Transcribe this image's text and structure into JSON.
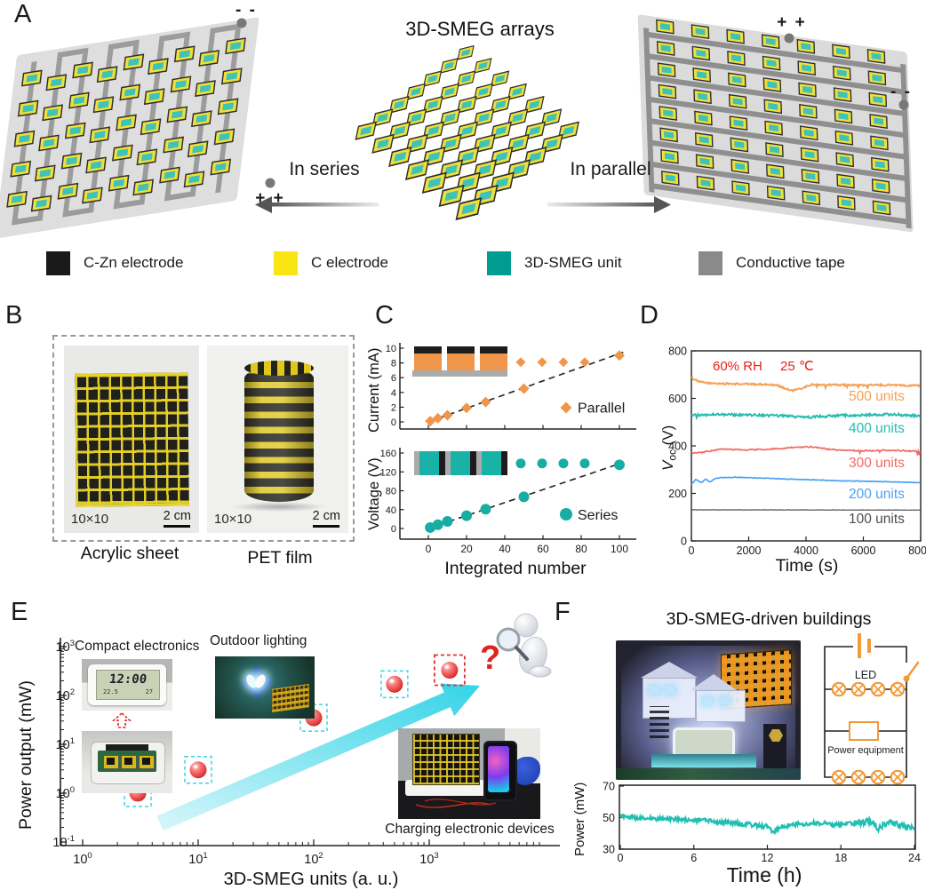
{
  "panels": {
    "a": "A",
    "b": "B",
    "c": "C",
    "d": "D",
    "e": "E",
    "f": "F"
  },
  "panelA": {
    "title": "3D-SMEG arrays",
    "in_series": "In series",
    "in_parallel": "In parallel",
    "left_array": {
      "top_terminal": "- -",
      "bottom_terminal": "+ +"
    },
    "right_array": {
      "top_terminal": "+ +",
      "side_terminal": "- -"
    },
    "legend": [
      {
        "name": "c-zn-electrode",
        "label": "C-Zn electrode",
        "color": "#1A1A1A"
      },
      {
        "name": "c-electrode",
        "label": "C electrode",
        "color": "#F9E514"
      },
      {
        "name": "3d-smeg-unit",
        "label": "3D-SMEG unit",
        "color": "#009C92"
      },
      {
        "name": "conductive-tape",
        "label": "Conductive tape",
        "color": "#8A8A8A"
      }
    ]
  },
  "panelB": {
    "left_photo": {
      "grid_label": "10×10",
      "scale_label": "2 cm",
      "caption": "Acrylic sheet"
    },
    "right_photo": {
      "grid_label": "10×10",
      "scale_label": "2 cm",
      "caption": "PET film"
    }
  },
  "panelE_insets": {
    "compact_label": "Compact electronics",
    "clock_time": "12:00",
    "clock_left": "22.5",
    "clock_right": "27",
    "outdoor_label": "Outdoor lighting",
    "charging_label": "Charging electronic devices",
    "question_mark": "?"
  },
  "panelF": {
    "title": "3D-SMEG-driven buildings",
    "circuit": {
      "led_label": "LED",
      "equipment_label": "Power equipment"
    }
  },
  "chart_data": [
    {
      "id": "current-vs-number",
      "type": "scatter",
      "ylabel": "Current (mA)",
      "xlabel": "",
      "xlim": [
        0,
        100
      ],
      "ylim": [
        0,
        10
      ],
      "xticks": [
        0,
        20,
        40,
        60,
        80,
        100
      ],
      "yticks": [
        0,
        2,
        4,
        6,
        8,
        10
      ],
      "legend": "Parallel",
      "marker": "diamond",
      "color": "#F0964B",
      "x": [
        1,
        5,
        10,
        20,
        30,
        50,
        100
      ],
      "y": [
        0.1,
        0.5,
        0.9,
        1.9,
        2.7,
        4.5,
        9.0
      ],
      "trend": [
        [
          0,
          0
        ],
        [
          102,
          9.45
        ]
      ]
    },
    {
      "id": "voltage-vs-number",
      "type": "scatter",
      "ylabel": "Voltage (V)",
      "xlabel": "Integrated number",
      "xlim": [
        0,
        100
      ],
      "ylim": [
        0,
        160
      ],
      "xticks": [
        0,
        20,
        40,
        60,
        80,
        100
      ],
      "yticks": [
        0,
        40,
        80,
        120,
        160
      ],
      "legend": "Series",
      "marker": "circle",
      "color": "#17ADA3",
      "x": [
        1,
        5,
        10,
        20,
        30,
        50,
        100
      ],
      "y": [
        2,
        8,
        15,
        27,
        41,
        67,
        135
      ],
      "trend": [
        [
          0,
          0
        ],
        [
          102,
          140
        ]
      ]
    },
    {
      "id": "voc-stability",
      "type": "line",
      "xlabel": "Time (s)",
      "ylabel_v": "V",
      "ylabel_sub": "oc",
      "ylabel_unit": "(V)",
      "xlim": [
        0,
        8000
      ],
      "ylim": [
        0,
        800
      ],
      "xticks": [
        0,
        2000,
        4000,
        6000,
        8000
      ],
      "yticks": [
        0,
        200,
        400,
        600,
        800
      ],
      "annotation_rh": "60% RH",
      "annotation_temp": "25 ℃",
      "annotation_color": "#E8221C",
      "series": [
        {
          "label": "500 units",
          "color": "#F5A057",
          "amp": 3.5,
          "spike": 0.025,
          "spike_mag": 14,
          "anchors_t": [
            0,
            250,
            700,
            1500,
            2500,
            3000,
            3200,
            3500,
            3800,
            4200,
            5000,
            6000,
            7000,
            8000
          ],
          "anchors_v": [
            688,
            670,
            663,
            661,
            659,
            656,
            645,
            632,
            640,
            658,
            657,
            655,
            657,
            653
          ]
        },
        {
          "label": "400 units",
          "color": "#27BCB1",
          "amp": 5,
          "spike": 0.006,
          "spike_mag": 12,
          "anchors_t": [
            0,
            1000,
            2000,
            3000,
            4000,
            5000,
            6000,
            7000,
            8000
          ],
          "anchors_v": [
            528,
            532,
            530,
            527,
            521,
            527,
            530,
            532,
            526
          ]
        },
        {
          "label": "300 units",
          "color": "#F16A63",
          "amp": 2.5,
          "spike": 0.02,
          "spike_mag": 16,
          "anchors_t": [
            0,
            400,
            1000,
            2000,
            3000,
            3600,
            4200,
            4600,
            5200,
            6000,
            7000,
            8000
          ],
          "anchors_v": [
            368,
            373,
            386,
            383,
            388,
            394,
            396,
            389,
            381,
            379,
            382,
            377
          ]
        },
        {
          "label": "200 units",
          "color": "#4AA2F4",
          "amp": 1.2,
          "spike": 0,
          "spike_mag": 0,
          "anchors_t": [
            0,
            150,
            350,
            500,
            650,
            800,
            1000,
            1600,
            3000,
            5000,
            6500,
            8000
          ],
          "anchors_v": [
            237,
            259,
            245,
            261,
            247,
            262,
            266,
            268,
            262,
            254,
            250,
            245
          ]
        },
        {
          "label": "100 units",
          "color": "#4D4D4D",
          "amp": 0.7,
          "spike": 0,
          "spike_mag": 0,
          "anchors_t": [
            0,
            8000
          ],
          "anchors_v": [
            131,
            130
          ]
        }
      ]
    },
    {
      "id": "power-scaling",
      "type": "scatter",
      "xscale": "log",
      "yscale": "log",
      "xlabel": "3D-SMEG units (a. u.)",
      "ylabel": "Power output (mW)",
      "xticks_exp": [
        0,
        1,
        2,
        3
      ],
      "yticks_exp": [
        -1,
        0,
        1,
        2,
        3
      ],
      "points": [
        {
          "units": 3,
          "power": 1,
          "box": "cyan"
        },
        {
          "units": 10,
          "power": 3,
          "box": "cyan"
        },
        {
          "units": 100,
          "power": 35,
          "box": "cyan"
        },
        {
          "units": 500,
          "power": 170,
          "box": "cyan"
        },
        {
          "units": 1500,
          "power": 330,
          "box": "red"
        }
      ],
      "arrow_color": "#33D4E8"
    },
    {
      "id": "building-power",
      "type": "line",
      "xlabel": "Time (h)",
      "ylabel": "Power (mW)",
      "xlim": [
        0,
        24
      ],
      "ylim": [
        30,
        70
      ],
      "xticks": [
        0,
        6,
        12,
        18,
        24
      ],
      "yticks": [
        30,
        50,
        70
      ],
      "series": [
        {
          "label": "power",
          "color": "#1FBFB2",
          "amp": 1.4,
          "anchors_t": [
            0,
            1,
            2,
            4,
            6,
            8,
            10,
            12,
            12.5,
            13,
            14,
            15,
            16,
            17,
            18,
            19,
            20,
            20.6,
            21,
            21.5,
            22,
            23,
            24
          ],
          "anchors_v": [
            51,
            50,
            49.5,
            49,
            48.5,
            47.5,
            46,
            44.5,
            40.5,
            44,
            45.5,
            46,
            46.5,
            46,
            45.5,
            46,
            47,
            48,
            42.5,
            46,
            46.5,
            45,
            42.5
          ]
        }
      ]
    }
  ]
}
